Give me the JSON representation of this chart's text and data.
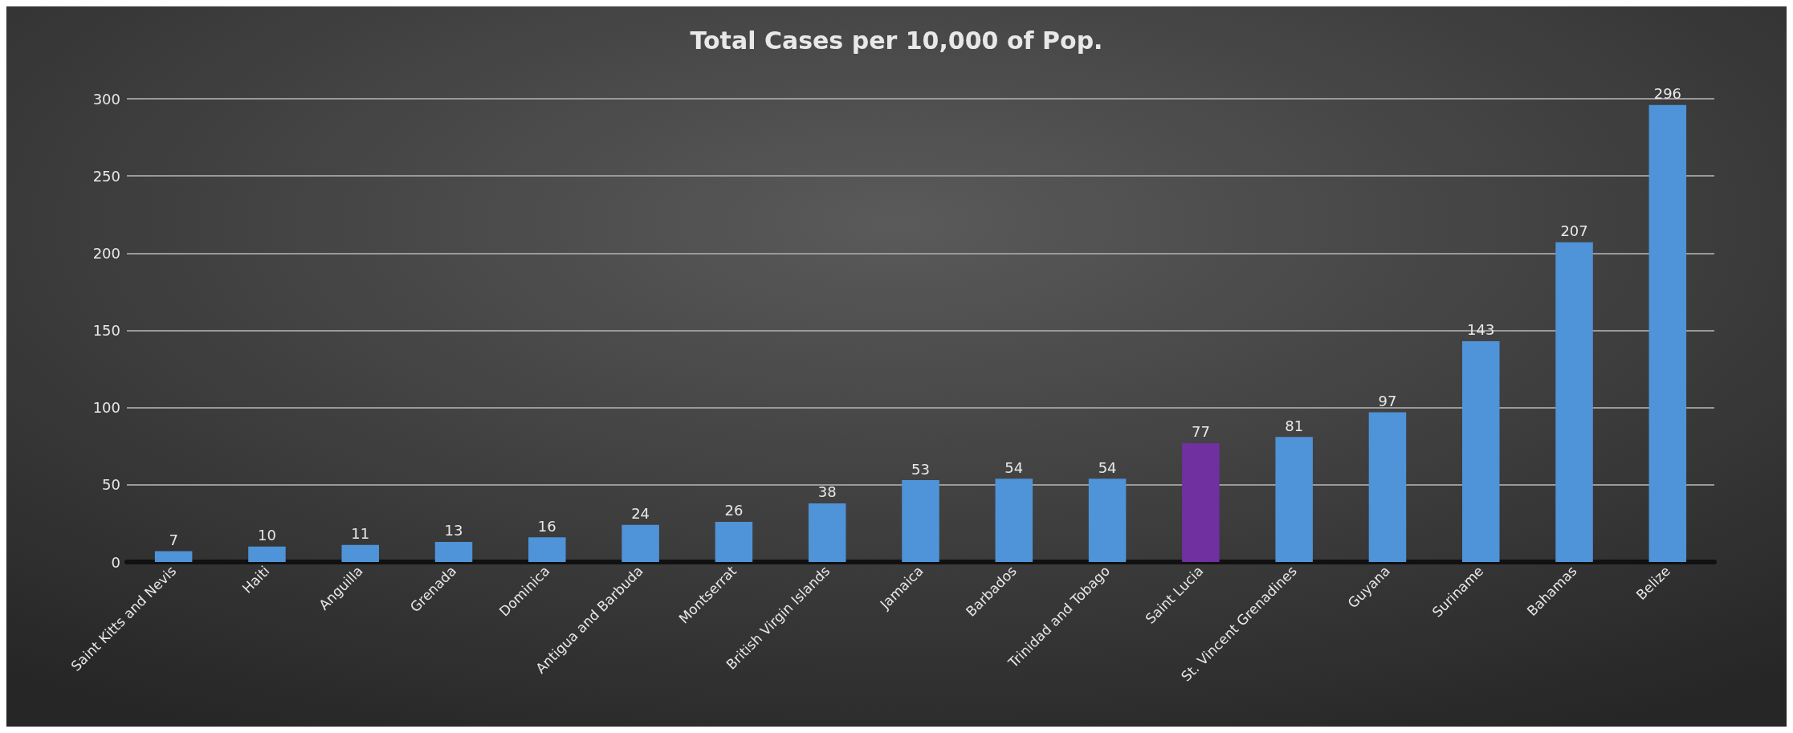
{
  "chart_data": {
    "type": "bar",
    "title": "Total Cases per 10,000 of Pop.",
    "categories": [
      "Saint Kitts and Nevis",
      "Haiti",
      "Anguilla",
      "Grenada",
      "Dominica",
      "Antigua and Barbuda",
      "Montserrat",
      "British Virgin Islands",
      "Jamaica",
      "Barbados",
      "Trinidad and Tobago",
      "Saint Lucia",
      "St. Vincent Grenadines",
      "Guyana",
      "Suriname",
      "Bahamas",
      "Belize"
    ],
    "values": [
      7,
      10,
      11,
      13,
      16,
      24,
      26,
      38,
      53,
      54,
      54,
      77,
      81,
      97,
      143,
      207,
      296
    ],
    "colors": [
      "#4f93d8",
      "#4f93d8",
      "#4f93d8",
      "#4f93d8",
      "#4f93d8",
      "#4f93d8",
      "#4f93d8",
      "#4f93d8",
      "#4f93d8",
      "#4f93d8",
      "#4f93d8",
      "#7030a0",
      "#4f93d8",
      "#4f93d8",
      "#4f93d8",
      "#4f93d8",
      "#4f93d8"
    ],
    "ylim": [
      0,
      300
    ],
    "yticks": [
      0,
      50,
      100,
      150,
      200,
      250,
      300
    ],
    "grid": "y",
    "data_labels": true
  }
}
